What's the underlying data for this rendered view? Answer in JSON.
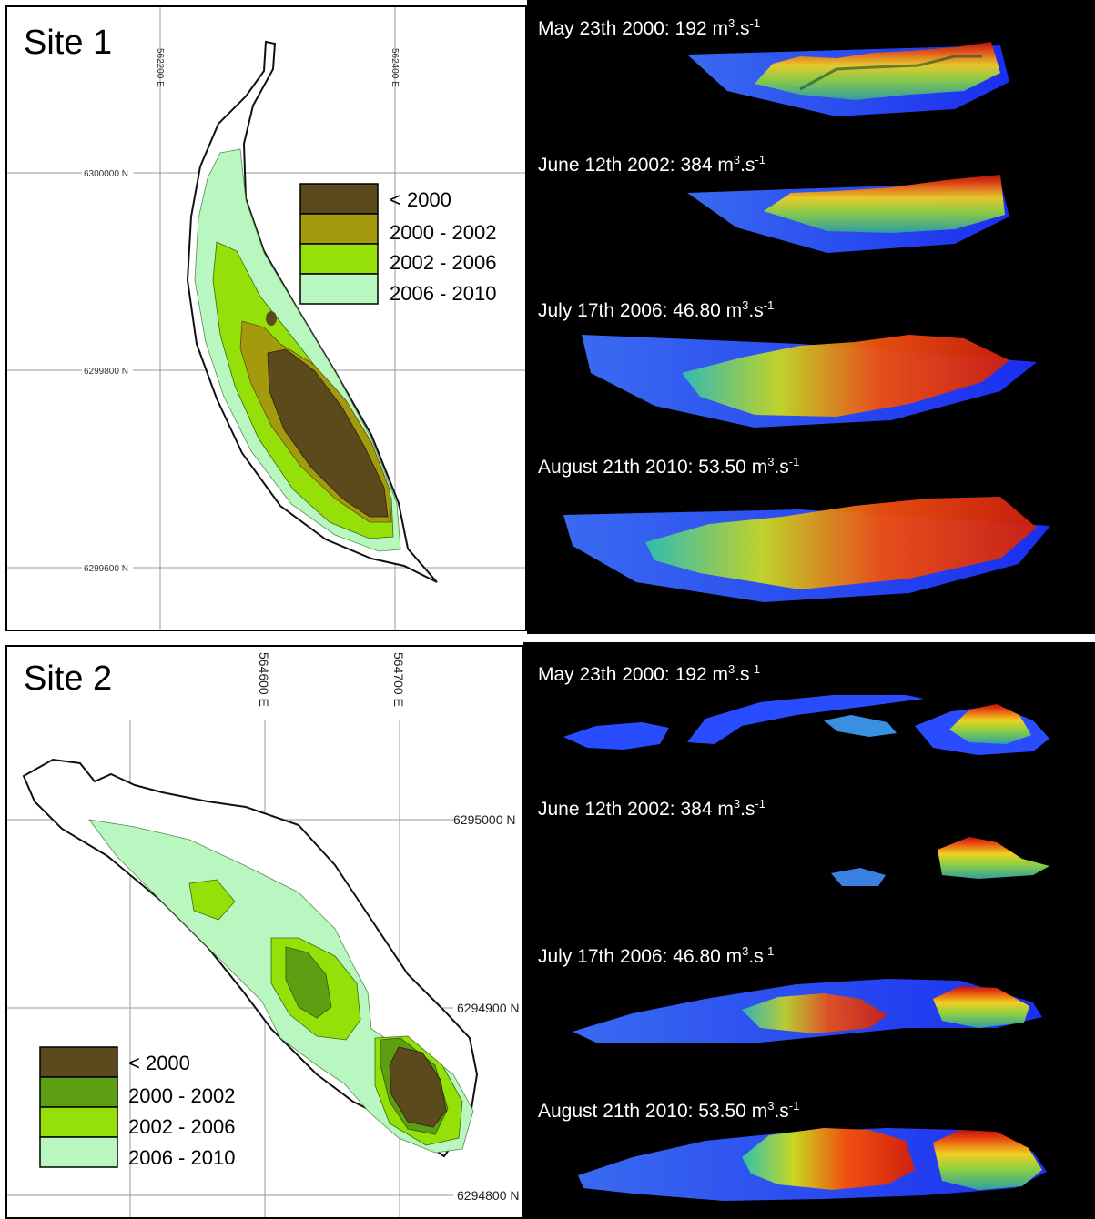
{
  "site1": {
    "title": "Site 1",
    "grid_labels": {
      "e1": "562200 E",
      "e2": "562400 E",
      "n1": "6300000 N",
      "n2": "6299800 N",
      "n3": "6299600 N"
    },
    "legend": [
      {
        "label": "< 2000",
        "color": "#5a4a1c"
      },
      {
        "label": "2000 - 2002",
        "color": "#a39a0e"
      },
      {
        "label": "2002 - 2006",
        "color": "#96e00a"
      },
      {
        "label": "2006 - 2010",
        "color": "#b8f7c0"
      }
    ],
    "captions": [
      {
        "date": "May 23th 2000: 192 m",
        "exp1": "3",
        "mid": ".s",
        "exp2": "-1"
      },
      {
        "date": "June 12th 2002: 384 m",
        "exp1": "3",
        "mid": ".s",
        "exp2": "-1"
      },
      {
        "date": "July 17th 2006: 46.80 m",
        "exp1": "3",
        "mid": ".s",
        "exp2": "-1"
      },
      {
        "date": "August 21th 2010: 53.50  m",
        "exp1": "3",
        "mid": ".s",
        "exp2": "-1"
      }
    ]
  },
  "site2": {
    "title": "Site 2",
    "grid_labels": {
      "e1": "564600 E",
      "e2": "564700 E",
      "n1": "6295000 N",
      "n2": "6294900 N",
      "n3": "6294800 N"
    },
    "legend": [
      {
        "label": "< 2000",
        "color": "#5a4a1c"
      },
      {
        "label": "2000 - 2002",
        "color": "#5e9e12"
      },
      {
        "label": "2002 - 2006",
        "color": "#96e00a"
      },
      {
        "label": "2006 - 2010",
        "color": "#b8f7c0"
      }
    ],
    "captions": [
      {
        "date": "May 23th 2000: 192 m",
        "exp1": "3",
        "mid": ".s",
        "exp2": "-1"
      },
      {
        "date": "June 12th 2002: 384 m",
        "exp1": "3",
        "mid": ".s",
        "exp2": "-1"
      },
      {
        "date": "July 17th 2006: 46.80 m",
        "exp1": "3",
        "mid": ".s",
        "exp2": "-1"
      },
      {
        "date": "August 21th 2010: 53.50  m",
        "exp1": "3",
        "mid": ".s",
        "exp2": "-1"
      }
    ]
  },
  "colors": {
    "render_bg": "#000000",
    "water_blue": "#2a4cff",
    "dem_green": "#b0d020",
    "dem_red": "#e03010"
  }
}
